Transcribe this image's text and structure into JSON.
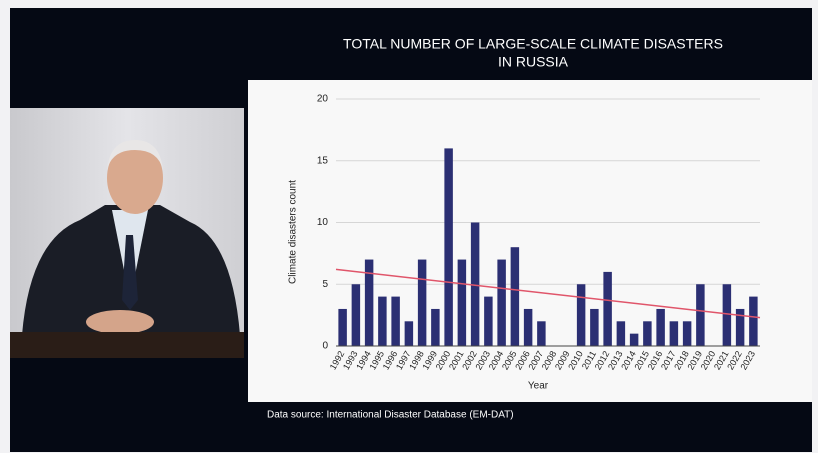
{
  "chart_data": {
    "type": "bar",
    "title": [
      "TOTAL NUMBER OF LARGE-SCALE CLIMATE DISASTERS",
      "IN RUSSIA"
    ],
    "x_label": "Year",
    "y_label": "Climate disasters count",
    "categories": [
      "1992",
      "1993",
      "1994",
      "1995",
      "1996",
      "1997",
      "1998",
      "1999",
      "2000",
      "2001",
      "2002",
      "2003",
      "2004",
      "2005",
      "2006",
      "2007",
      "2008",
      "2009",
      "2010",
      "2011",
      "2012",
      "2013",
      "2014",
      "2015",
      "2016",
      "2017",
      "2018",
      "2019",
      "2020",
      "2021",
      "2022",
      "2023"
    ],
    "values": [
      3,
      5,
      7,
      4,
      4,
      2,
      7,
      3,
      16,
      7,
      10,
      4,
      7,
      8,
      3,
      2,
      0,
      0,
      5,
      3,
      6,
      2,
      1,
      2,
      3,
      2,
      2,
      5,
      0,
      5,
      3,
      4
    ],
    "color": "#2b2f73",
    "trendline": {
      "color": "#e0556a",
      "start": 6.2,
      "end": 2.3
    },
    "ylim": [
      0,
      20
    ],
    "yticks": [
      0,
      5,
      10,
      15,
      20
    ],
    "grid": true,
    "source": "Data source: International Disaster Database (EM-DAT)"
  }
}
